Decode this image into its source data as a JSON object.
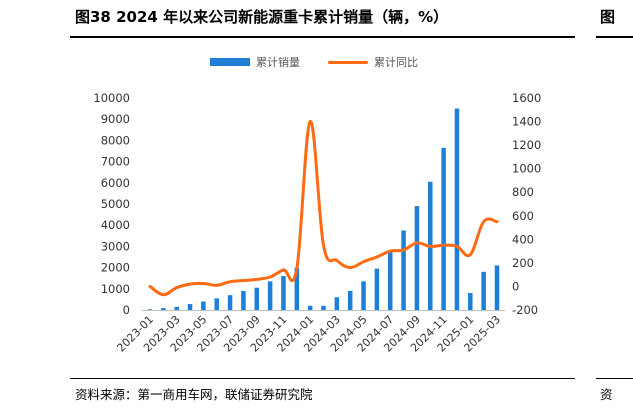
{
  "header": {
    "title": "图38 2024 年以来公司新能源重卡累计销量（辆，%）",
    "right_title_fragment": "图"
  },
  "footer": {
    "source": "资料来源：第一商用车网，联储证券研究院",
    "right_source_fragment": "资"
  },
  "colors": {
    "bar": "#1f7fd6",
    "line": "#ff6a13",
    "axis_text": "#595959"
  },
  "chart_data": {
    "type": "bar+line",
    "title": "",
    "x": [
      "2023-01",
      "2023-02",
      "2023-03",
      "2023-04",
      "2023-05",
      "2023-06",
      "2023-07",
      "2023-08",
      "2023-09",
      "2023-10",
      "2023-11",
      "2023-12",
      "2024-01",
      "2024-02",
      "2024-03",
      "2024-04",
      "2024-05",
      "2024-06",
      "2024-07",
      "2024-08",
      "2024-09",
      "2024-10",
      "2024-11",
      "2024-12",
      "2025-01",
      "2025-02",
      "2025-03"
    ],
    "x_tick_labels": [
      "2023-01",
      "2023-03",
      "2023-05",
      "2023-07",
      "2023-09",
      "2023-11",
      "2024-01",
      "2024-03",
      "2024-05",
      "2024-07",
      "2024-09",
      "2024-11",
      "2025-01",
      "2025-03"
    ],
    "y_left": {
      "min": 0,
      "max": 10000,
      "step": 1000
    },
    "y_right": {
      "min": -200,
      "max": 1600,
      "step": 200
    },
    "series": [
      {
        "name": "累计销量",
        "type": "bar",
        "axis": "left",
        "values": [
          30,
          90,
          150,
          280,
          400,
          550,
          700,
          900,
          1050,
          1350,
          1600,
          2000,
          200,
          200,
          600,
          900,
          1350,
          1950,
          2800,
          3750,
          4900,
          6050,
          7650,
          9500,
          800,
          1800,
          2100
        ]
      },
      {
        "name": "累计同比",
        "type": "line",
        "axis": "right",
        "values": [
          0,
          -70,
          -10,
          20,
          25,
          10,
          40,
          50,
          60,
          80,
          140,
          150,
          1400,
          350,
          220,
          160,
          210,
          250,
          300,
          310,
          370,
          340,
          350,
          340,
          270,
          550,
          550
        ]
      }
    ],
    "legend": "top",
    "grid": false
  }
}
